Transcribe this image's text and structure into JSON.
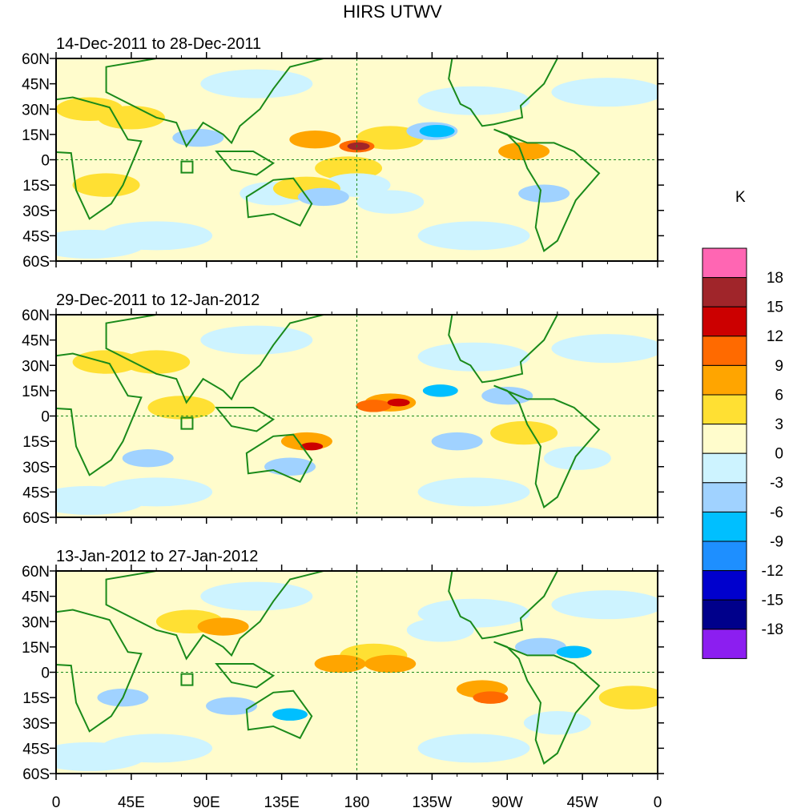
{
  "title": "HIRS UTWV",
  "colorbar": {
    "unit": "K",
    "levels": [
      "18",
      "15",
      "12",
      "9",
      "6",
      "3",
      "0",
      "-3",
      "-6",
      "-9",
      "-12",
      "-15",
      "-18"
    ],
    "colors": [
      "#ff66b3",
      "#a0252a",
      "#cc0000",
      "#ff6a00",
      "#ffa500",
      "#ffe033",
      "#fffccc",
      "#cdf3ff",
      "#a0d2ff",
      "#00bfff",
      "#1e8fff",
      "#0000cd",
      "#00008b",
      "#8c1ef0"
    ]
  },
  "chart_data": {
    "type": "heatmap",
    "xlim": [
      0,
      360
    ],
    "ylim": [
      -60,
      60
    ],
    "x_ticks": [
      "0",
      "45E",
      "90E",
      "135E",
      "180",
      "135W",
      "90W",
      "45W",
      "0"
    ],
    "y_ticks": [
      "60N",
      "45N",
      "30N",
      "15N",
      "0",
      "15S",
      "30S",
      "45S",
      "60S"
    ],
    "panels": [
      {
        "title": "14-Dec-2011 to 28-Dec-2011",
        "features": [
          [
            155,
            12,
            6
          ],
          [
            180,
            8,
            9
          ],
          [
            181,
            8,
            15
          ],
          [
            200,
            13,
            3
          ],
          [
            175,
            -5,
            3
          ],
          [
            225,
            17,
            -6
          ],
          [
            228,
            17,
            -9
          ],
          [
            85,
            13,
            -6
          ],
          [
            130,
            -20,
            -3
          ],
          [
            180,
            -15,
            -3
          ],
          [
            160,
            -22,
            -6
          ],
          [
            280,
            5,
            6
          ],
          [
            292,
            -20,
            -6
          ],
          [
            45,
            25,
            3
          ],
          [
            20,
            30,
            3
          ],
          [
            150,
            -17,
            3
          ],
          [
            30,
            -15,
            3
          ],
          [
            200,
            -25,
            -3
          ]
        ]
      },
      {
        "title": "29-Dec-2011 to 12-Jan-2012",
        "features": [
          [
            200,
            8,
            6
          ],
          [
            205,
            8,
            12
          ],
          [
            190,
            6,
            9
          ],
          [
            150,
            -15,
            6
          ],
          [
            153,
            -18,
            12
          ],
          [
            230,
            15,
            -9
          ],
          [
            30,
            32,
            3
          ],
          [
            60,
            32,
            3
          ],
          [
            75,
            5,
            3
          ],
          [
            55,
            -25,
            -6
          ],
          [
            140,
            -30,
            -6
          ],
          [
            240,
            -15,
            -6
          ],
          [
            312,
            -25,
            -3
          ],
          [
            270,
            12,
            -6
          ],
          [
            280,
            -10,
            3
          ]
        ]
      },
      {
        "title": "13-Jan-2012 to 27-Jan-2012",
        "features": [
          [
            100,
            27,
            6
          ],
          [
            80,
            30,
            3
          ],
          [
            170,
            5,
            6
          ],
          [
            200,
            5,
            6
          ],
          [
            190,
            10,
            3
          ],
          [
            105,
            -20,
            -6
          ],
          [
            140,
            -25,
            -9
          ],
          [
            310,
            12,
            -9
          ],
          [
            290,
            15,
            -6
          ],
          [
            255,
            -10,
            6
          ],
          [
            260,
            -15,
            9
          ],
          [
            40,
            -15,
            -6
          ],
          [
            230,
            25,
            -3
          ],
          [
            345,
            -15,
            3
          ],
          [
            300,
            -30,
            -3
          ]
        ]
      }
    ]
  }
}
